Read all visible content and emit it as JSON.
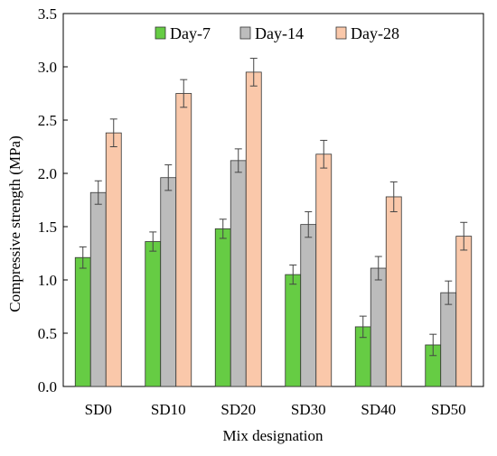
{
  "chart_data": {
    "type": "bar",
    "title": "",
    "xlabel": "Mix designation",
    "ylabel": "Compressive strength (MPa)",
    "ylim": [
      0,
      3.5
    ],
    "yticks": [
      "0.0",
      "0.5",
      "1.0",
      "1.5",
      "2.0",
      "2.5",
      "3.0",
      "3.5"
    ],
    "grid": false,
    "legend_position": "top",
    "categories": [
      "SD0",
      "SD10",
      "SD20",
      "SD30",
      "SD40",
      "SD50"
    ],
    "series": [
      {
        "name": "Day-7",
        "color": "#66cc44",
        "values": [
          1.21,
          1.36,
          1.48,
          1.05,
          0.56,
          0.39
        ],
        "errors": [
          0.1,
          0.09,
          0.09,
          0.09,
          0.1,
          0.1
        ]
      },
      {
        "name": "Day-14",
        "color": "#bcbcbc",
        "values": [
          1.82,
          1.96,
          2.12,
          1.52,
          1.11,
          0.88
        ],
        "errors": [
          0.11,
          0.12,
          0.11,
          0.12,
          0.11,
          0.11
        ]
      },
      {
        "name": "Day-28",
        "color": "#fac8aa",
        "values": [
          2.38,
          2.75,
          2.95,
          2.18,
          1.78,
          1.41
        ],
        "errors": [
          0.13,
          0.13,
          0.13,
          0.13,
          0.14,
          0.13
        ]
      }
    ]
  }
}
